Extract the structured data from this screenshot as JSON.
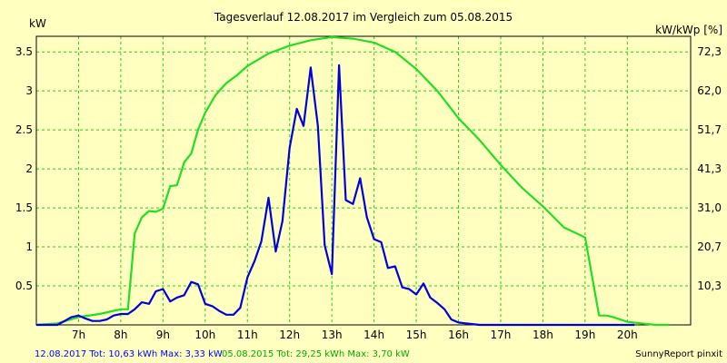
{
  "chart_data": {
    "type": "line",
    "title": "Tagesverlauf 12.08.2017 im Vergleich zum 05.08.2015",
    "ylabel_left": "kW",
    "ylabel_right": "kW/kWp [%]",
    "x_ticks": [
      "7h",
      "8h",
      "9h",
      "10h",
      "11h",
      "12h",
      "13h",
      "14h",
      "15h",
      "16h",
      "17h",
      "18h",
      "19h",
      "20h"
    ],
    "x_range": [
      6.0,
      21.5
    ],
    "y_ticks": [
      "0.5",
      "1",
      "1.5",
      "2",
      "2.5",
      "3",
      "3.5"
    ],
    "y_tick_values": [
      0.5,
      1,
      1.5,
      2,
      2.5,
      3,
      3.5
    ],
    "y_right_ticks": [
      "10,3",
      "20,7",
      "31,0",
      "41,3",
      "51,7",
      "62,0",
      "72,3"
    ],
    "ylim": [
      0,
      3.7
    ],
    "grid": true,
    "series": [
      {
        "name": "12.08.2017",
        "color": "#0000dd",
        "x": [
          6.0,
          6.5,
          6.67,
          6.83,
          7.0,
          7.17,
          7.33,
          7.5,
          7.67,
          7.83,
          8.0,
          8.17,
          8.33,
          8.5,
          8.67,
          8.83,
          9.0,
          9.17,
          9.33,
          9.5,
          9.67,
          9.83,
          10.0,
          10.17,
          10.33,
          10.5,
          10.67,
          10.83,
          11.0,
          11.17,
          11.33,
          11.5,
          11.67,
          11.83,
          12.0,
          12.17,
          12.33,
          12.5,
          12.67,
          12.83,
          13.0,
          13.17,
          13.33,
          13.5,
          13.67,
          13.83,
          14.0,
          14.17,
          14.33,
          14.5,
          14.67,
          14.83,
          15.0,
          15.17,
          15.33,
          15.5,
          15.67,
          15.83,
          16.0,
          16.17,
          16.33,
          16.5,
          16.67,
          16.83,
          17.0,
          17.17,
          17.33,
          17.5,
          17.67,
          17.83,
          18.0,
          18.17,
          18.33,
          18.5,
          18.67,
          18.83,
          19.0,
          19.17,
          19.33,
          19.5,
          19.67,
          19.83,
          20.0,
          20.17
        ],
        "values": [
          0.0,
          0.0,
          0.05,
          0.1,
          0.12,
          0.08,
          0.05,
          0.05,
          0.07,
          0.12,
          0.14,
          0.14,
          0.2,
          0.29,
          0.27,
          0.43,
          0.46,
          0.3,
          0.35,
          0.38,
          0.55,
          0.52,
          0.27,
          0.24,
          0.18,
          0.13,
          0.13,
          0.22,
          0.61,
          0.82,
          1.07,
          1.63,
          0.94,
          1.33,
          2.27,
          2.77,
          2.55,
          3.3,
          2.55,
          1.02,
          0.65,
          3.33,
          1.6,
          1.55,
          1.88,
          1.38,
          1.1,
          1.06,
          0.73,
          0.75,
          0.48,
          0.46,
          0.39,
          0.53,
          0.35,
          0.28,
          0.2,
          0.07,
          0.03,
          0.02,
          0.01,
          0.0,
          0.0,
          0.0,
          0.0,
          0.0,
          0.0,
          0.0,
          0.0,
          0.0,
          0.0,
          0.0,
          0.0,
          0.0,
          0.0,
          0.0,
          0.0,
          0.0,
          0.0,
          0.0,
          0.0,
          0.0,
          0.0,
          0.0
        ]
      },
      {
        "name": "05.08.2015",
        "color": "#22dd22",
        "x": [
          6.0,
          6.5,
          7.0,
          7.5,
          8.0,
          8.17,
          8.33,
          8.5,
          8.67,
          8.83,
          9.0,
          9.17,
          9.33,
          9.5,
          9.67,
          9.83,
          10.0,
          10.25,
          10.5,
          10.75,
          11.0,
          11.5,
          12.0,
          12.5,
          13.0,
          13.5,
          14.0,
          14.5,
          15.0,
          15.5,
          16.0,
          16.5,
          17.0,
          17.5,
          18.0,
          18.5,
          19.0,
          19.33,
          19.5,
          19.67,
          19.83,
          20.0,
          20.33,
          20.67,
          21.0
        ],
        "values": [
          0.0,
          0.02,
          0.1,
          0.14,
          0.2,
          0.2,
          1.17,
          1.38,
          1.46,
          1.45,
          1.49,
          1.78,
          1.79,
          2.08,
          2.2,
          2.5,
          2.72,
          2.95,
          3.1,
          3.2,
          3.32,
          3.48,
          3.58,
          3.65,
          3.69,
          3.67,
          3.62,
          3.5,
          3.28,
          3.0,
          2.65,
          2.37,
          2.05,
          1.76,
          1.52,
          1.25,
          1.12,
          0.12,
          0.12,
          0.1,
          0.07,
          0.04,
          0.02,
          0.0,
          0.0
        ]
      }
    ]
  },
  "footer": {
    "series1_text": "12.08.2017 Tot: 10,63 kWh Max: 3,33 kW",
    "series2_text": "05.08.2015 Tot: 29,25 kWh Max: 3,70 kW",
    "credit": "SunnyReport pinxit"
  }
}
